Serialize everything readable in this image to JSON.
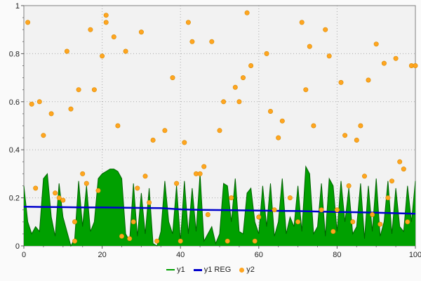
{
  "chart_data": {
    "type": "mixed",
    "title": "",
    "xlabel": "",
    "ylabel": "",
    "plot_bg": "#F2F2F2",
    "outer_bg": "#FAFAFA",
    "grid_color": "#AAAAAA",
    "axis_color": "#808080",
    "x_axis": {
      "min": 0,
      "max": 100,
      "major_ticks": [
        0,
        20,
        40,
        60,
        80,
        100
      ],
      "labels": [
        "0",
        "20",
        "40",
        "60",
        "80",
        "100"
      ],
      "minor_step": 5
    },
    "y_axis": {
      "min": 0,
      "max": 1,
      "major_ticks": [
        0,
        0.2,
        0.4,
        0.6,
        0.8,
        1
      ],
      "labels": [
        "0",
        "0.2",
        "0.4",
        "0.6",
        "0.8",
        "1"
      ],
      "minor_step": 0.05
    },
    "legend_position": "bottom-center",
    "grid": "dotted",
    "series": [
      {
        "name": "y1",
        "type": "area",
        "color": "#00A000",
        "edge_color": "#006400",
        "x_start": 0,
        "x_step": 1,
        "values": [
          0.25,
          0.1,
          0.05,
          0.08,
          0.06,
          0.28,
          0.3,
          0.12,
          0.04,
          0.26,
          0.12,
          0.06,
          0.0,
          0.03,
          0.27,
          0.08,
          0.25,
          0.06,
          0.1,
          0.28,
          0.3,
          0.31,
          0.32,
          0.32,
          0.31,
          0.28,
          0.05,
          0.02,
          0.26,
          0.04,
          0.22,
          0.05,
          0.24,
          0.01,
          0.0,
          0.06,
          0.27,
          0.1,
          0.05,
          0.25,
          0.02,
          0.27,
          0.05,
          0.24,
          0.06,
          0.3,
          0.02,
          0.05,
          0.08,
          0.01,
          0.05,
          0.26,
          0.25,
          0.1,
          0.28,
          0.06,
          0.05,
          0.22,
          0.24,
          0.1,
          0.05,
          0.25,
          0.08,
          0.26,
          0.04,
          0.1,
          0.28,
          0.05,
          0.12,
          0.08,
          0.25,
          0.06,
          0.33,
          0.3,
          0.05,
          0.08,
          0.26,
          0.04,
          0.28,
          0.25,
          0.06,
          0.27,
          0.1,
          0.24,
          0.05,
          0.08,
          0.26,
          0.03,
          0.25,
          0.06,
          0.28,
          0.04,
          0.1,
          0.27,
          0.05,
          0.24,
          0.08,
          0.06,
          0.25,
          0.1,
          0.27
        ]
      },
      {
        "name": "y1 REG",
        "type": "line",
        "color": "#0000CC",
        "x": [
          0,
          5,
          10,
          15,
          20,
          25,
          30,
          35,
          40,
          45,
          50,
          55,
          60,
          65,
          70,
          75,
          80,
          85,
          90,
          95,
          100
        ],
        "y": [
          0.163,
          0.162,
          0.161,
          0.16,
          0.16,
          0.159,
          0.158,
          0.157,
          0.152,
          0.15,
          0.149,
          0.148,
          0.147,
          0.146,
          0.145,
          0.143,
          0.141,
          0.14,
          0.138,
          0.136,
          0.134
        ]
      },
      {
        "name": "y2",
        "type": "scatter",
        "color": "#FFA520",
        "edge_color": "#D98C00",
        "points": [
          [
            1,
            0.93
          ],
          [
            2,
            0.59
          ],
          [
            3,
            0.24
          ],
          [
            4,
            0.6
          ],
          [
            5,
            0.46
          ],
          [
            7,
            0.55
          ],
          [
            8,
            0.22
          ],
          [
            9,
            0.2
          ],
          [
            10,
            0.19
          ],
          [
            11,
            0.81
          ],
          [
            12,
            0.57
          ],
          [
            13,
            0.1
          ],
          [
            13,
            0.02
          ],
          [
            14,
            0.65
          ],
          [
            15,
            0.3
          ],
          [
            16,
            0.26
          ],
          [
            17,
            0.9
          ],
          [
            18,
            0.65
          ],
          [
            19,
            0.23
          ],
          [
            20,
            0.79
          ],
          [
            21,
            0.96
          ],
          [
            21,
            0.93
          ],
          [
            23,
            0.87
          ],
          [
            24,
            0.5
          ],
          [
            25,
            0.04
          ],
          [
            26,
            0.81
          ],
          [
            27,
            0.03
          ],
          [
            28,
            0.1
          ],
          [
            29,
            0.24
          ],
          [
            30,
            0.89
          ],
          [
            31,
            0.29
          ],
          [
            32,
            0.18
          ],
          [
            33,
            0.44
          ],
          [
            34,
            0.02
          ],
          [
            36,
            0.48
          ],
          [
            38,
            0.7
          ],
          [
            39,
            0.26
          ],
          [
            40,
            0.02
          ],
          [
            41,
            0.43
          ],
          [
            42,
            0.93
          ],
          [
            43,
            0.85
          ],
          [
            44,
            0.3
          ],
          [
            45,
            0.3
          ],
          [
            46,
            0.33
          ],
          [
            47,
            0.13
          ],
          [
            48,
            0.85
          ],
          [
            50,
            0.48
          ],
          [
            51,
            0.6
          ],
          [
            52,
            0.02
          ],
          [
            53,
            0.2
          ],
          [
            54,
            0.66
          ],
          [
            55,
            0.6
          ],
          [
            56,
            0.7
          ],
          [
            57,
            0.97
          ],
          [
            58,
            0.75
          ],
          [
            59,
            0.02
          ],
          [
            60,
            0.12
          ],
          [
            62,
            0.8
          ],
          [
            63,
            0.56
          ],
          [
            64,
            0.15
          ],
          [
            65,
            0.45
          ],
          [
            66,
            0.52
          ],
          [
            68,
            0.2
          ],
          [
            70,
            0.1
          ],
          [
            71,
            0.93
          ],
          [
            72,
            0.65
          ],
          [
            73,
            0.83
          ],
          [
            74,
            0.5
          ],
          [
            76,
            0.15
          ],
          [
            77,
            0.9
          ],
          [
            78,
            0.79
          ],
          [
            79,
            0.06
          ],
          [
            80,
            0.15
          ],
          [
            81,
            0.68
          ],
          [
            82,
            0.46
          ],
          [
            83,
            0.25
          ],
          [
            84,
            0.1
          ],
          [
            85,
            0.44
          ],
          [
            86,
            0.5
          ],
          [
            87,
            0.29
          ],
          [
            88,
            0.69
          ],
          [
            89,
            0.13
          ],
          [
            90,
            0.84
          ],
          [
            91,
            0.09
          ],
          [
            92,
            0.76
          ],
          [
            93,
            0.2
          ],
          [
            94,
            0.27
          ],
          [
            95,
            0.78
          ],
          [
            96,
            0.35
          ],
          [
            97,
            0.32
          ],
          [
            98,
            0.1
          ],
          [
            99,
            0.75
          ],
          [
            100,
            0.75
          ]
        ]
      }
    ]
  },
  "legend": {
    "items": [
      {
        "label": "y1"
      },
      {
        "label": "y1 REG"
      },
      {
        "label": "y2"
      }
    ]
  }
}
